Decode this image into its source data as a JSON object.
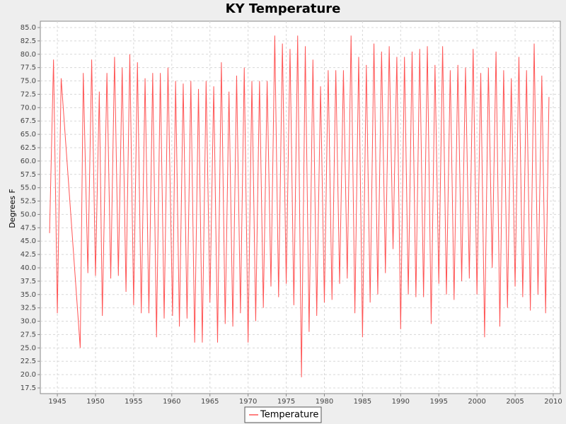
{
  "chart_data": {
    "type": "line",
    "title": "KY Temperature",
    "ylabel": "Degrees F",
    "x": [
      1943.98,
      1944.5,
      1945.0,
      1945.5,
      1948.0,
      1948.4,
      1949.0,
      1949.5,
      1950.0,
      1950.5,
      1950.9,
      1951.5,
      1952.0,
      1952.5,
      1953.0,
      1953.5,
      1954.0,
      1954.5,
      1955.0,
      1955.5,
      1956.0,
      1956.5,
      1957.0,
      1957.5,
      1958.0,
      1958.5,
      1959.0,
      1959.5,
      1960.1,
      1960.5,
      1961.0,
      1961.5,
      1962.0,
      1962.5,
      1963.0,
      1963.5,
      1964.0,
      1964.5,
      1965.0,
      1965.5,
      1966.0,
      1966.5,
      1967.0,
      1967.5,
      1968.0,
      1968.5,
      1969.0,
      1969.5,
      1970.0,
      1970.5,
      1971.0,
      1971.5,
      1972.0,
      1972.5,
      1973.0,
      1973.5,
      1974.0,
      1974.5,
      1975.0,
      1975.5,
      1976.0,
      1976.5,
      1977.0,
      1977.5,
      1978.0,
      1978.5,
      1979.0,
      1979.5,
      1980.0,
      1980.5,
      1981.0,
      1981.5,
      1982.0,
      1982.5,
      1983.0,
      1983.5,
      1984.0,
      1984.5,
      1985.0,
      1985.5,
      1986.0,
      1986.5,
      1987.0,
      1987.5,
      1988.0,
      1988.5,
      1989.0,
      1989.5,
      1990.0,
      1990.5,
      1991.0,
      1991.5,
      1992.0,
      1992.5,
      1993.0,
      1993.5,
      1994.0,
      1994.5,
      1995.0,
      1995.5,
      1996.0,
      1996.5,
      1997.0,
      1997.5,
      1998.0,
      1998.5,
      1999.0,
      1999.5,
      2000.0,
      2000.5,
      2001.0,
      2001.5,
      2002.0,
      2002.5,
      2003.0,
      2003.5,
      2004.0,
      2004.5,
      2005.0,
      2005.5,
      2006.0,
      2006.5,
      2007.0,
      2007.5,
      2008.0,
      2008.5,
      2009.0,
      2009.44
    ],
    "series": [
      {
        "name": "Temperature",
        "color": "#ff5555",
        "values": [
          46.5,
          79,
          31.5,
          75.5,
          25,
          76.5,
          39,
          79,
          38.5,
          73,
          31,
          76.5,
          38,
          79.5,
          38.5,
          77.5,
          35.5,
          80,
          33,
          78.5,
          31.5,
          75.5,
          31.5,
          76.5,
          27,
          76.5,
          30.5,
          77.5,
          31,
          75,
          29,
          74.5,
          30.5,
          75,
          26,
          73.5,
          26,
          75,
          33.5,
          74,
          26,
          78.5,
          29.5,
          73,
          29,
          76,
          31.5,
          77.5,
          26,
          75,
          30,
          75,
          32.5,
          75,
          36.5,
          83.5,
          34.5,
          82,
          37,
          81,
          33,
          83.5,
          19.5,
          81.5,
          28,
          79,
          31,
          74,
          33.5,
          77,
          34,
          77,
          37,
          77,
          38,
          83.5,
          31.5,
          79.5,
          27,
          78,
          33.5,
          82,
          35,
          80.5,
          39,
          81.5,
          43.5,
          79.5,
          28.5,
          79.5,
          35,
          80.5,
          34.5,
          81,
          34.5,
          81.5,
          29.5,
          78,
          37,
          81.5,
          35,
          77,
          34,
          78,
          37.5,
          77.5,
          38,
          81,
          35,
          76.5,
          27,
          77.5,
          40,
          80.5,
          29,
          77,
          32.5,
          75.5,
          36.5,
          79.5,
          34.5,
          77,
          32,
          82,
          35,
          76,
          31.5,
          72
        ]
      }
    ],
    "xlim": [
      1942.77,
      2010.93
    ],
    "xticks": [
      1945,
      1950,
      1955,
      1960,
      1965,
      1970,
      1975,
      1980,
      1985,
      1990,
      1995,
      2000,
      2005,
      2010
    ],
    "ylim": [
      16.44,
      86.19
    ],
    "yticks": [
      17.5,
      {
        "value": 20,
        "label": "20.0"
      },
      22.5,
      {
        "value": 25,
        "label": "25.0"
      },
      27.5,
      {
        "value": 30,
        "label": "30.0"
      },
      32.5,
      {
        "value": 35,
        "label": "35.0"
      },
      37.5,
      {
        "value": 40,
        "label": "40.0"
      },
      42.5,
      {
        "value": 45,
        "label": "45.0"
      },
      47.5,
      {
        "value": 50,
        "label": "50.0"
      },
      52.5,
      {
        "value": 55,
        "label": "55.0"
      },
      57.5,
      {
        "value": 60,
        "label": "60.0"
      },
      62.5,
      {
        "value": 65,
        "label": "65.0"
      },
      67.5,
      {
        "value": 70,
        "label": "70.0"
      },
      72.5,
      {
        "value": 75,
        "label": "75.0"
      },
      77.5,
      {
        "value": 80,
        "label": "80.0"
      },
      82.5,
      {
        "value": 85,
        "label": "85.0"
      }
    ],
    "grid": true,
    "legend": "bottom"
  }
}
